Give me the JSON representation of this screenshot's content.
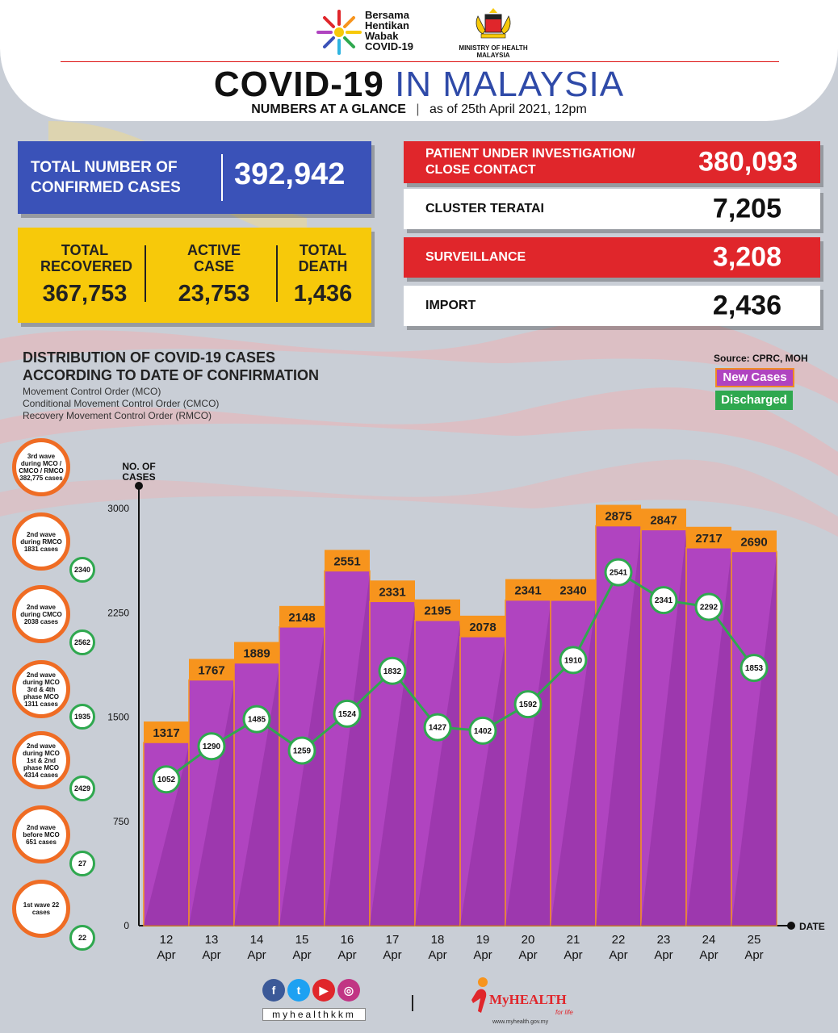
{
  "header": {
    "campaign_logo": [
      "Bersama",
      "Hentikan",
      "Wabak",
      "COVID-19"
    ],
    "ministry_logo": [
      "MINISTRY OF HEALTH",
      "MALAYSIA"
    ],
    "title_bold": "COVID-19",
    "title_light": "IN MALAYSIA",
    "subtitle_bold": "NUMBERS AT A GLANCE",
    "subtitle_date": "as of 25th April 2021, 12pm"
  },
  "totals": {
    "confirmed_label": "TOTAL NUMBER OF CONFIRMED CASES",
    "confirmed_value": "392,942",
    "recovered_label": "TOTAL RECOVERED",
    "recovered_value": "367,753",
    "active_label": "ACTIVE CASE",
    "active_value": "23,753",
    "death_label": "TOTAL DEATH",
    "death_value": "1,436"
  },
  "sources": [
    {
      "label": "PATIENT UNDER INVESTIGATION/ CLOSE CONTACT",
      "value": "380,093",
      "style": "red"
    },
    {
      "label": "CLUSTER TERATAI",
      "value": "7,205",
      "style": "white"
    },
    {
      "label": "SURVEILLANCE",
      "value": "3,208",
      "style": "red"
    },
    {
      "label": "IMPORT",
      "value": "2,436",
      "style": "white"
    }
  ],
  "distribution": {
    "heading_line1": "DISTRIBUTION OF COVID-19 CASES",
    "heading_line2": "ACCORDING TO DATE OF CONFIRMATION",
    "notes": [
      "Movement Control Order (MCO)",
      "Conditional Movement Control Order (CMCO)",
      "Recovery Movement Control Order (RMCO)"
    ]
  },
  "source_note": "Source: CPRC, MOH",
  "waves": [
    {
      "text": "3rd wave during MCO / CMCO / RMCO 382,775 cases",
      "discharged": ""
    },
    {
      "text": "2nd wave during RMCO 1831 cases",
      "discharged": "2340"
    },
    {
      "text": "2nd wave during CMCO 2038 cases",
      "discharged": "2562"
    },
    {
      "text": "2nd wave during MCO 3rd & 4th phase MCO 1311 cases",
      "discharged": "1935"
    },
    {
      "text": "2nd wave during MCO 1st & 2nd phase MCO 4314 cases",
      "discharged": "2429"
    },
    {
      "text": "2nd wave before MCO 651 cases",
      "discharged": "27"
    },
    {
      "text": "1st wave 22 cases",
      "discharged": "22"
    }
  ],
  "chart_data": {
    "type": "bar",
    "ylabel": "NO. OF CASES",
    "xlabel": "DATE",
    "ylim": [
      0,
      3000
    ],
    "yticks": [
      0,
      750,
      1500,
      2250,
      3000
    ],
    "categories": [
      "12 Apr",
      "13 Apr",
      "14 Apr",
      "15 Apr",
      "16 Apr",
      "17 Apr",
      "18 Apr",
      "19 Apr",
      "20 Apr",
      "21 Apr",
      "22 Apr",
      "23 Apr",
      "24 Apr",
      "25 Apr"
    ],
    "series": [
      {
        "name": "New Cases",
        "type": "bar",
        "color": "#b044c0",
        "values": [
          1317,
          1767,
          1889,
          2148,
          2551,
          2331,
          2195,
          2078,
          2341,
          2340,
          2875,
          2847,
          2717,
          2690
        ]
      },
      {
        "name": "Discharged",
        "type": "line",
        "color": "#2fa84f",
        "values": [
          1052,
          1290,
          1485,
          1259,
          1524,
          1832,
          1427,
          1402,
          1592,
          1910,
          2541,
          2341,
          2292,
          1853
        ]
      }
    ],
    "legend_position": "top-right"
  },
  "footer": {
    "social_icons": [
      "facebook-icon",
      "twitter-icon",
      "youtube-icon",
      "instagram-icon"
    ],
    "handle": "myhealthkkm",
    "brand": "MyHEALTH",
    "tagline": "for life",
    "url": "www.myhealth.gov.my"
  },
  "colors": {
    "blue": "#3a52b8",
    "yellow": "#f7c90a",
    "red": "#e0262b",
    "purple": "#b044c0",
    "orange": "#f7941d",
    "green": "#2fa84f"
  }
}
